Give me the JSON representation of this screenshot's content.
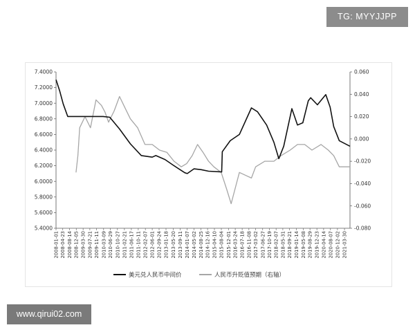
{
  "watermarks": {
    "top_right": "TG: MYYJJPP",
    "bottom_left": "www.qirui02.com"
  },
  "colors": {
    "usd_cny_line": "#111111",
    "appreciation_line": "#a6a6a6",
    "badge_top": "#8c8c8c",
    "badge_bottom": "#7a7a7a"
  },
  "chart_data": {
    "type": "line",
    "grid": false,
    "legend_position": "bottom",
    "y_left": {
      "ticks": [
        "7.4000",
        "7.2000",
        "7.0000",
        "6.8000",
        "6.6000",
        "6.4000",
        "6.2000",
        "6.0000",
        "5.8000",
        "5.6000",
        "5.4000"
      ],
      "lim": [
        5.4,
        7.4
      ]
    },
    "y_right": {
      "ticks": [
        "0.060",
        "0.040",
        "0.020",
        "0.000",
        "-0.020",
        "-0.040",
        "-0.060",
        "-0.080"
      ],
      "lim": [
        -0.08,
        0.06
      ]
    },
    "x_ticks": [
      "2008-01-01",
      "2008-04-23",
      "2008-08-14",
      "2008-12-05",
      "2009-03-30",
      "2009-07-21",
      "2009-11-11",
      "2010-03-09",
      "2010-06-29",
      "2010-10-27",
      "2011-02-21",
      "2011-06-17",
      "2011-10-11",
      "2012-02-07",
      "2012-06-01",
      "2012-09-24",
      "2013-01-18",
      "2013-05-20",
      "2013-09-11",
      "2014-01-07",
      "2014-05-02",
      "2014-08-25",
      "2014-12-16",
      "2015-04-10",
      "2015-08-04",
      "2015-12-01",
      "2016-03-24",
      "2016-07-18",
      "2016-11-08",
      "2017-03-02",
      "2017-06-27",
      "2017-10-19",
      "2018-02-07",
      "2018-05-31",
      "2018-09-21",
      "2019-01-14",
      "2019-05-08",
      "2019-08-29",
      "2019-12-23",
      "2020-04-14",
      "2020-08-07",
      "2020-12-02",
      "2021-03-30"
    ],
    "x_lim": [
      "2008-01-01",
      "2021-06-30"
    ],
    "series": [
      {
        "name": "美元兑人民币中间价",
        "axis": "left",
        "x": [
          "2008-01-01",
          "2008-03-01",
          "2008-05-01",
          "2008-07-15",
          "2008-10-01",
          "2009-06-01",
          "2010-03-01",
          "2010-06-20",
          "2010-12-01",
          "2011-06-01",
          "2011-12-01",
          "2012-06-01",
          "2012-08-01",
          "2013-01-01",
          "2013-06-01",
          "2013-12-01",
          "2014-01-10",
          "2014-05-01",
          "2014-09-01",
          "2015-01-01",
          "2015-08-10",
          "2015-08-20",
          "2016-01-01",
          "2016-06-01",
          "2016-12-20",
          "2017-04-01",
          "2017-09-01",
          "2018-01-01",
          "2018-03-25",
          "2018-06-15",
          "2018-10-30",
          "2019-02-01",
          "2019-05-01",
          "2019-08-01",
          "2019-09-10",
          "2020-01-01",
          "2020-05-20",
          "2020-08-01",
          "2020-10-01",
          "2021-01-01",
          "2021-06-30"
        ],
        "values": [
          7.3,
          7.16,
          6.99,
          6.83,
          6.83,
          6.83,
          6.83,
          6.82,
          6.67,
          6.48,
          6.33,
          6.31,
          6.33,
          6.28,
          6.2,
          6.11,
          6.1,
          6.16,
          6.15,
          6.13,
          6.12,
          6.38,
          6.52,
          6.6,
          6.94,
          6.89,
          6.72,
          6.5,
          6.29,
          6.45,
          6.93,
          6.72,
          6.75,
          7.03,
          7.07,
          6.98,
          7.11,
          6.95,
          6.7,
          6.52,
          6.45
        ]
      },
      {
        "name": "人民币升贬值预期（右轴）",
        "axis": "right",
        "x": [
          "2008-12-01",
          "2009-01-01",
          "2009-02-01",
          "2009-05-01",
          "2009-08-01",
          "2009-11-01",
          "2010-02-01",
          "2010-04-01",
          "2010-06-01",
          "2010-09-01",
          "2010-12-01",
          "2011-03-01",
          "2011-06-01",
          "2011-10-01",
          "2012-02-01",
          "2012-06-01",
          "2012-10-01",
          "2013-02-01",
          "2013-06-01",
          "2013-10-01",
          "2014-01-01",
          "2014-04-01",
          "2014-07-01",
          "2014-10-01",
          "2015-01-01",
          "2015-04-01",
          "2015-08-01",
          "2015-11-01",
          "2016-01-15",
          "2016-06-01",
          "2016-12-20",
          "2017-03-01",
          "2017-08-01",
          "2018-01-01",
          "2018-05-01",
          "2018-10-01",
          "2019-02-01",
          "2019-06-01",
          "2019-10-01",
          "2020-03-01",
          "2020-07-01",
          "2020-10-01",
          "2021-01-01",
          "2021-06-30"
        ],
        "values": [
          -0.03,
          -0.015,
          0.01,
          0.02,
          0.01,
          0.035,
          0.03,
          0.024,
          0.015,
          0.025,
          0.038,
          0.028,
          0.018,
          0.01,
          -0.005,
          -0.005,
          -0.01,
          -0.012,
          -0.02,
          -0.025,
          -0.022,
          -0.015,
          -0.005,
          -0.012,
          -0.02,
          -0.025,
          -0.03,
          -0.045,
          -0.058,
          -0.03,
          -0.035,
          -0.025,
          -0.02,
          -0.02,
          -0.015,
          -0.01,
          -0.005,
          -0.005,
          -0.01,
          -0.005,
          -0.01,
          -0.015,
          -0.025,
          -0.025
        ]
      }
    ]
  }
}
